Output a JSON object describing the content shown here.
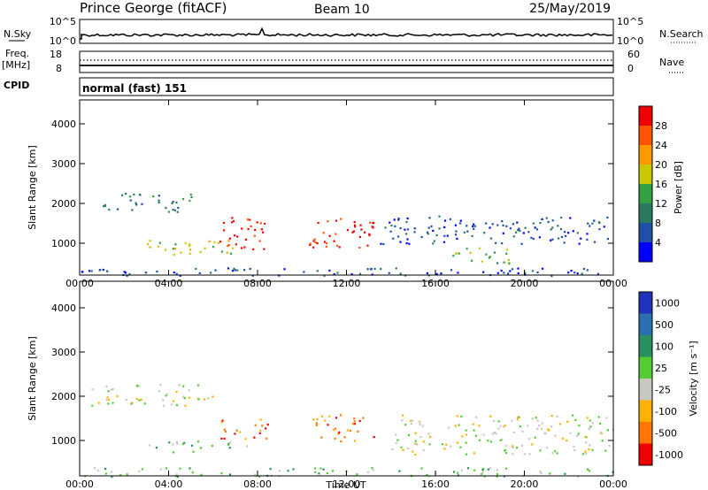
{
  "header": {
    "station": "Prince George (fitACF)",
    "beam": "Beam 10",
    "date": "25/May/2019"
  },
  "top_panels": {
    "nsky_label": "N.Sky",
    "nsky_ticks": [
      "10^5",
      "10^0"
    ],
    "nsearch_label": "N.Search",
    "nsearch_ticks": [
      "10^5",
      "10^0"
    ],
    "freq_label_top": "Freq.",
    "freq_label_unit": "[MHz]",
    "freq_ticks": [
      "18",
      "8"
    ],
    "nave_label": "Nave",
    "nave_ticks": [
      "60",
      "0"
    ],
    "cpid_label": "CPID",
    "cpid_value": "normal (fast) 151"
  },
  "colors": {
    "power": [
      "#0000ff",
      "#1f4fa8",
      "#2a7a60",
      "#30a040",
      "#c8c800",
      "#ff9900",
      "#ff5500",
      "#ee0000"
    ],
    "velocity": [
      "#2233bb",
      "#2a6fb0",
      "#2a9060",
      "#55cc33",
      "#c8c8c0",
      "#ffb000",
      "#ff7700",
      "#ee0000"
    ]
  },
  "chart_data": [
    {
      "type": "heatmap",
      "name": "power",
      "xlabel": "",
      "ylabel": "Slant Range [km]",
      "x_ticks": [
        "00:00",
        "04:00",
        "08:00",
        "12:00",
        "16:00",
        "20:00",
        "00:00"
      ],
      "y_ticks": [
        "1000",
        "2000",
        "3000",
        "4000"
      ],
      "xlim": [
        0,
        24
      ],
      "ylim": [
        200,
        4600
      ],
      "colorbar_label": "Power [dB]",
      "colorbar_ticks": [
        "4",
        "8",
        "12",
        "16",
        "20",
        "24",
        "28"
      ],
      "regions": [
        {
          "t0": 6.2,
          "t1": 8.3,
          "r0": 850,
          "r1": 1700,
          "level": 7
        },
        {
          "t0": 10.3,
          "t1": 13.2,
          "r0": 900,
          "r1": 1700,
          "level": 7
        },
        {
          "t0": 3.0,
          "t1": 7.0,
          "r0": 700,
          "r1": 1100,
          "level": 4
        },
        {
          "t0": 1.0,
          "t1": 5.0,
          "r0": 1800,
          "r1": 2300,
          "level": 2
        },
        {
          "t0": 16.5,
          "t1": 19.5,
          "r0": 500,
          "r1": 900,
          "level": 3
        },
        {
          "t0": 13.5,
          "t1": 24.0,
          "r0": 1000,
          "r1": 1700,
          "level": 1
        },
        {
          "t0": 0.0,
          "t1": 24.0,
          "r0": 200,
          "r1": 400,
          "level": 1
        }
      ]
    },
    {
      "type": "heatmap",
      "name": "velocity",
      "xlabel": "Time UT",
      "ylabel": "Slant Range [km]",
      "x_ticks": [
        "00:00",
        "04:00",
        "08:00",
        "12:00",
        "16:00",
        "20:00",
        "00:00"
      ],
      "y_ticks": [
        "1000",
        "2000",
        "3000",
        "4000"
      ],
      "xlim": [
        0,
        24
      ],
      "ylim": [
        200,
        4600
      ],
      "colorbar_label": "Velocity [m s⁻¹]",
      "colorbar_ticks": [
        "1000",
        "500",
        "100",
        "25",
        "-25",
        "-100",
        "-500",
        "-1000"
      ],
      "regions": [
        {
          "t0": 6.0,
          "t1": 8.5,
          "r0": 1050,
          "r1": 1500,
          "level": 6
        },
        {
          "t0": 10.3,
          "t1": 13.2,
          "r0": 1000,
          "r1": 1600,
          "level": 6
        },
        {
          "t0": 3.0,
          "t1": 7.5,
          "r0": 750,
          "r1": 1000,
          "level": 3
        },
        {
          "t0": 0.5,
          "t1": 6.0,
          "r0": 1800,
          "r1": 2300,
          "level": 4
        },
        {
          "t0": 14.0,
          "t1": 24.0,
          "r0": 700,
          "r1": 1600,
          "level": 4
        },
        {
          "t0": 0.0,
          "t1": 24.0,
          "r0": 200,
          "r1": 400,
          "level": 3
        }
      ]
    }
  ]
}
